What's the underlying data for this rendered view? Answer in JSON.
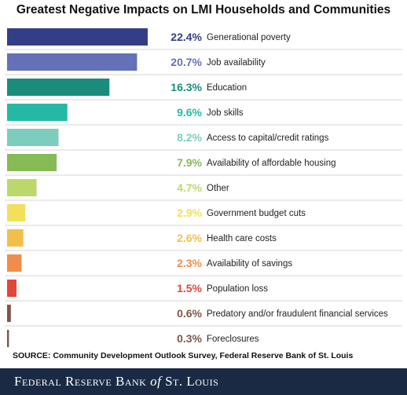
{
  "chart_data": {
    "type": "bar",
    "orientation": "horizontal",
    "title": "Greatest Negative Impacts on LMI Households and Communities",
    "categories": [
      "Generational poverty",
      "Job availability",
      "Education",
      "Job skills",
      "Access to capital/credit ratings",
      "Availability of affordable housing",
      "Other",
      "Government budget cuts",
      "Health care costs",
      "Availability of savings",
      "Population loss",
      "Predatory and/or fraudulent financial services",
      "Foreclosures"
    ],
    "values": [
      22.4,
      20.7,
      16.3,
      9.6,
      8.2,
      7.9,
      4.7,
      2.9,
      2.6,
      2.3,
      1.5,
      0.6,
      0.3
    ],
    "value_labels": [
      "22.4%",
      "20.7%",
      "16.3%",
      "9.6%",
      "8.2%",
      "7.9%",
      "4.7%",
      "2.9%",
      "2.6%",
      "2.3%",
      "1.5%",
      "0.6%",
      "0.3%"
    ],
    "colors": [
      "#343e86",
      "#6470b7",
      "#1a8c7c",
      "#25b9a5",
      "#7dcdbf",
      "#86bb55",
      "#bcd86c",
      "#f4df5c",
      "#f2bf4a",
      "#f08c4c",
      "#e0473a",
      "#7f5548",
      "#7f5548"
    ],
    "xlim": [
      0,
      22.4
    ],
    "grid": false,
    "legend": "none"
  },
  "source": "SOURCE: Community Development Outlook Survey, Federal Reserve Bank of St. Louis",
  "footer": {
    "line1": "Federal Reserve Bank ",
    "of": "of",
    "line2": " St. Louis"
  }
}
